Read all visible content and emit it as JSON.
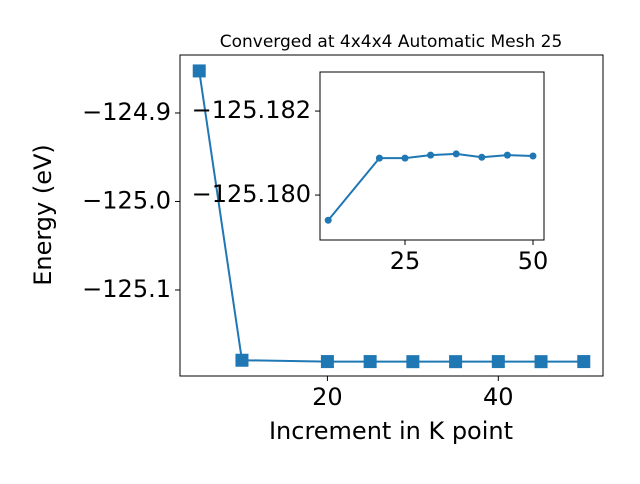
{
  "chart_data": [
    {
      "type": "line",
      "title": "Converged at 4x4x4 Automatic Mesh 25",
      "xlabel": "Increment in K point",
      "ylabel": "Energy (eV)",
      "x": [
        5,
        10,
        20,
        25,
        30,
        35,
        40,
        45,
        50
      ],
      "series": [
        {
          "color": "#1f77b4",
          "marker": "square",
          "values": [
            -124.8525,
            -125.1794,
            -125.1809,
            -125.1809,
            -125.181,
            -125.181,
            -125.1809,
            -125.181,
            -125.1809
          ]
        }
      ],
      "xlim": [
        2.75,
        52.25
      ],
      "ylim": [
        -125.1972,
        -124.8345
      ],
      "xticks": [
        20,
        40
      ],
      "yticks": [
        {
          "value": -125.1,
          "label": "−125.1"
        },
        {
          "value": -125.0,
          "label": "−125.0"
        },
        {
          "value": -124.9,
          "label": "−124.9"
        }
      ]
    },
    {
      "type": "line",
      "x": [
        10,
        20,
        25,
        30,
        35,
        40,
        45,
        50
      ],
      "series": [
        {
          "color": "#1f77b4",
          "marker": "circle",
          "values": [
            -125.1794,
            -125.18088,
            -125.18088,
            -125.18095,
            -125.18098,
            -125.1809,
            -125.18095,
            -125.18093
          ]
        }
      ],
      "xlim": [
        8.4,
        52.15
      ],
      "ylim": [
        -125.17893,
        -125.18293
      ],
      "xticks": [
        25,
        50
      ],
      "yticks": [
        {
          "value": -125.18,
          "label": "−125.180"
        },
        {
          "value": -125.182,
          "label": "−125.182"
        }
      ]
    }
  ]
}
